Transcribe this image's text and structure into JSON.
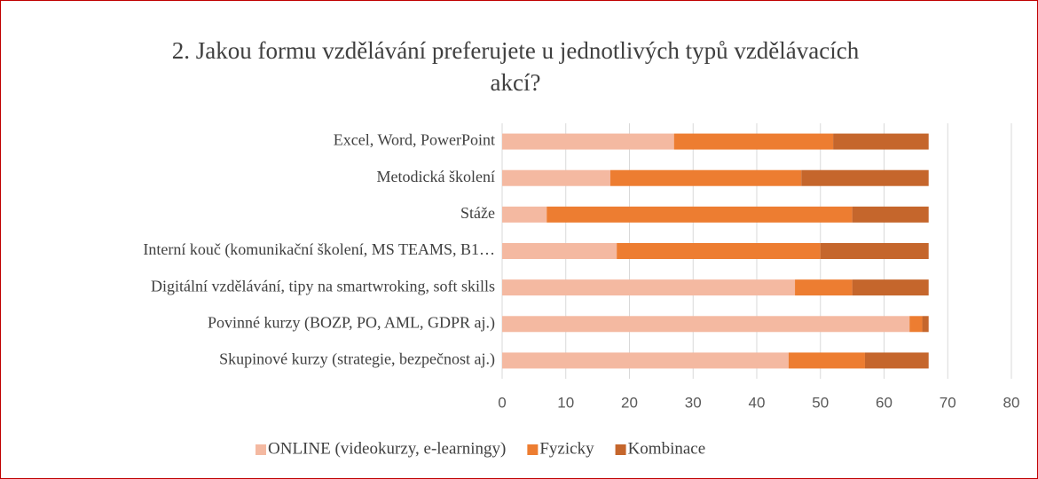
{
  "chart_data": {
    "type": "stacked_barh",
    "title": "2. Jakou formu vzdělávání preferujete u jednotlivých typů vzdělávacích akcí?",
    "categories": [
      "Excel, Word, PowerPoint",
      "Metodická školení",
      "Stáže",
      "Interní kouč (komunikační školení, MS TEAMS, B1…",
      "Digitální vzdělávání, tipy na smartwroking, soft skills",
      "Povinné kurzy (BOZP, PO, AML, GDPR aj.)",
      "Skupinové kurzy (strategie, bezpečnost aj.)"
    ],
    "series": [
      {
        "name": "ONLINE (videokurzy, e-learningy)",
        "color": "#f4b9a1",
        "values": [
          27,
          17,
          7,
          18,
          46,
          64,
          45
        ]
      },
      {
        "name": "Fyzicky",
        "color": "#ed7d31",
        "values": [
          25,
          30,
          48,
          32,
          9,
          2,
          12
        ]
      },
      {
        "name": "Kombinace",
        "color": "#c5662c",
        "values": [
          15,
          20,
          12,
          17,
          12,
          1,
          10
        ]
      }
    ],
    "xlim": [
      0,
      80
    ],
    "xticks": [
      0,
      10,
      20,
      30,
      40,
      50,
      60,
      70,
      80
    ],
    "grid": true,
    "legend": "bottom"
  }
}
